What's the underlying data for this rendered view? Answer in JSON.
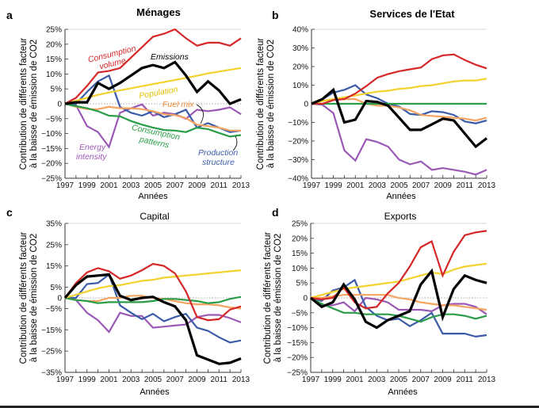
{
  "figure": {
    "y_axis_label_line1": "Contribution de différents facteur",
    "y_axis_label_line2": "à la baisse de émission de CO2",
    "x_axis_label": "Années"
  },
  "series_colors": {
    "consumption_volume": "#d62728",
    "emissions": "#000000",
    "population": "#f2d22e",
    "fuel_mix": "#f4a460",
    "consumption_patterns": "#2a9d48",
    "energy_intensity": "#9b59b6",
    "production_structure": "#3b5ba9"
  },
  "chart_data": [
    {
      "type": "line",
      "panel": "a",
      "title": "Ménages",
      "title_bold": true,
      "xlabel": "Années",
      "ylabel": "Contribution de différents facteur à la baisse de émission de CO2",
      "x": [
        1997,
        1998,
        1999,
        2000,
        2001,
        2002,
        2003,
        2004,
        2005,
        2006,
        2007,
        2008,
        2009,
        2010,
        2011,
        2012,
        2013
      ],
      "xticks": [
        "1997",
        "1999",
        "2001",
        "2003",
        "2005",
        "2007",
        "2009",
        "2011",
        "2013"
      ],
      "ylim": [
        -25,
        25
      ],
      "yticks": [
        25,
        20,
        15,
        10,
        5,
        0,
        -5,
        -10,
        -15,
        -20,
        -25
      ],
      "ytick_labels": [
        "25%",
        "20%",
        "15%",
        "10%",
        "5%",
        "0",
        "−5%",
        "−10%",
        "−15%",
        "−20%",
        "−25%"
      ],
      "zero_line": "dotted",
      "series": [
        {
          "key": "consumption_volume",
          "name": "Consumption volume",
          "values": [
            0,
            2,
            6,
            10.5,
            11,
            12,
            15.5,
            19,
            22.5,
            23.5,
            25,
            22,
            19.5,
            20.5,
            20.5,
            19.5,
            22
          ]
        },
        {
          "key": "population",
          "name": "Population",
          "values": [
            0,
            1,
            2,
            3,
            3.8,
            4.5,
            5.2,
            5.9,
            6.6,
            7.3,
            8,
            8.7,
            9.4,
            10.2,
            10.8,
            11.4,
            12
          ]
        },
        {
          "key": "fuel_mix",
          "name": "Fuel mix",
          "values": [
            0,
            -1,
            -1.8,
            -1.8,
            -1,
            -1.5,
            -1.5,
            -1.8,
            -2.5,
            -3.5,
            -3.8,
            -4.8,
            -7,
            -7.5,
            -8,
            -9,
            -9
          ]
        },
        {
          "key": "consumption_patterns",
          "name": "Consumption patterns",
          "values": [
            0,
            -0.8,
            -1.5,
            -2.5,
            -4,
            -4.2,
            -5.8,
            -7,
            -8,
            -8.8,
            -9,
            -9.5,
            -8,
            -8.5,
            -9.8,
            -11,
            -10.5
          ]
        },
        {
          "key": "energy_intensity",
          "name": "Energy intensity",
          "values": [
            0,
            -0.5,
            -7.5,
            -9.5,
            -14.5,
            -3,
            -1.5,
            -0.2,
            -4,
            -3,
            -3.5,
            -5,
            -2,
            -2.5,
            -2,
            -1.2,
            -3.5
          ]
        },
        {
          "key": "production_structure",
          "name": "Production structure",
          "values": [
            0,
            0,
            4,
            7.5,
            9.5,
            -1,
            -3,
            -4,
            -2.5,
            -4.5,
            -3.5,
            -2,
            -8,
            -6.5,
            -8,
            -9.5,
            -9
          ]
        },
        {
          "key": "emissions",
          "name": "Emissions",
          "values": [
            0,
            0.5,
            0.5,
            7,
            5,
            7,
            9.5,
            12,
            13,
            12,
            14,
            9.5,
            4,
            7.5,
            4.5,
            0,
            1.5
          ]
        }
      ],
      "annotations": [
        {
          "text": "Consumption volume",
          "color_key": "consumption_volume"
        },
        {
          "text": "Emissions",
          "color_key": "emissions"
        },
        {
          "text": "Population",
          "color_key": "population"
        },
        {
          "text": "Fuel mix",
          "color_key": "fuel_mix"
        },
        {
          "text": "Consumption patterns",
          "color_key": "consumption_patterns"
        },
        {
          "text": "Energy intensity",
          "color_key": "energy_intensity"
        },
        {
          "text": "Production structure",
          "color_key": "production_structure"
        }
      ]
    },
    {
      "type": "line",
      "panel": "b",
      "title": "Services de l'Etat",
      "title_bold": true,
      "xlabel": "Années",
      "x": [
        1997,
        1998,
        1999,
        2000,
        2001,
        2002,
        2003,
        2004,
        2005,
        2006,
        2007,
        2008,
        2009,
        2010,
        2011,
        2012,
        2013
      ],
      "xticks": [
        "1997",
        "1999",
        "2001",
        "2003",
        "2005",
        "2007",
        "2009",
        "2011",
        "2013"
      ],
      "ylim": [
        -40,
        40
      ],
      "yticks": [
        40,
        30,
        20,
        10,
        0,
        -10,
        -20,
        -30,
        -40
      ],
      "ytick_labels": [
        "40%",
        "30%",
        "20%",
        "10%",
        "0",
        "−10%",
        "−20%",
        "−30%",
        "−40%"
      ],
      "zero_line": "none",
      "series": [
        {
          "key": "consumption_volume",
          "name": "Consumption volume",
          "values": [
            0,
            0,
            2,
            2.5,
            5.5,
            9.5,
            14,
            16,
            17.5,
            18.5,
            19.5,
            24,
            26,
            26.5,
            23.5,
            21,
            19
          ]
        },
        {
          "key": "population",
          "name": "Population",
          "values": [
            0,
            1.5,
            2.5,
            3.5,
            4.5,
            5.5,
            6.5,
            7,
            8,
            8.5,
            9.5,
            10,
            11,
            12,
            12.5,
            12.5,
            13.5
          ]
        },
        {
          "key": "fuel_mix",
          "name": "Fuel mix",
          "values": [
            0,
            1.5,
            2.5,
            2.5,
            2.5,
            0,
            -1,
            -1,
            -2,
            -3.5,
            -6,
            -6.5,
            -7,
            -7.5,
            -8,
            -9,
            -7.5
          ]
        },
        {
          "key": "consumption_patterns",
          "name": "Consumption patterns",
          "values": [
            0,
            0,
            0,
            0,
            0,
            0,
            0,
            0,
            0,
            0,
            0,
            0,
            0,
            0,
            0,
            0,
            0
          ]
        },
        {
          "key": "energy_intensity",
          "name": "Energy intensity",
          "values": [
            0,
            -0.5,
            -5,
            -25,
            -30.5,
            -19,
            -20.5,
            -23,
            -30,
            -32.5,
            -31,
            -35.5,
            -34.5,
            -35.5,
            -36.5,
            -38,
            -35.5
          ]
        },
        {
          "key": "production_structure",
          "name": "Production structure",
          "values": [
            0,
            2.5,
            6,
            7.5,
            10,
            5,
            3,
            0,
            -1.5,
            -5.5,
            -6,
            -4,
            -4.5,
            -6,
            -9.5,
            -10.5,
            -9
          ]
        },
        {
          "key": "emissions",
          "name": "Emissions",
          "values": [
            0,
            2.5,
            7.5,
            -10,
            -8.5,
            1.5,
            1,
            -1,
            -7.5,
            -14,
            -14,
            -11,
            -8,
            -9,
            -16,
            -23,
            -18.5
          ]
        }
      ]
    },
    {
      "type": "line",
      "panel": "c",
      "title": "Capital",
      "title_bold": false,
      "xlabel": "Années",
      "ylabel": "Contribution de différents facteur à la baisse de émission de CO2",
      "x": [
        1997,
        1998,
        1999,
        2000,
        2001,
        2002,
        2003,
        2004,
        2005,
        2006,
        2007,
        2008,
        2009,
        2010,
        2011,
        2012,
        2013
      ],
      "xticks": [
        "1997",
        "1999",
        "2001",
        "2003",
        "2005",
        "2007",
        "2009",
        "2011",
        "2013"
      ],
      "ylim": [
        -35,
        35
      ],
      "yticks": [
        35,
        25,
        15,
        5,
        0,
        -5,
        -15,
        -25,
        -35
      ],
      "ytick_labels": [
        "35%",
        "25%",
        "15%",
        "5%",
        "0",
        "−5%",
        "−15%",
        "−25%",
        "−35%"
      ],
      "zero_line": "dotted",
      "series": [
        {
          "key": "consumption_volume",
          "name": "Consumption volume",
          "values": [
            0,
            7,
            12,
            14,
            12.5,
            9,
            10.5,
            13,
            16,
            15,
            11.5,
            3,
            -9,
            -10.5,
            -10,
            -5.5,
            -4
          ]
        },
        {
          "key": "population",
          "name": "Population",
          "values": [
            0,
            1.5,
            3,
            4.5,
            5.5,
            6,
            7,
            8,
            8.5,
            9.5,
            10,
            10.5,
            11,
            11.5,
            12,
            12.5,
            13
          ]
        },
        {
          "key": "fuel_mix",
          "name": "Fuel mix",
          "values": [
            0,
            -1,
            -1.5,
            -1.5,
            0,
            0,
            1,
            1,
            0,
            -0.5,
            -1.5,
            -2.5,
            -3,
            -3,
            -3.5,
            -4.5,
            -5
          ]
        },
        {
          "key": "consumption_patterns",
          "name": "Consumption patterns",
          "values": [
            0,
            -1,
            -1.5,
            -2.5,
            -2,
            -2,
            -2,
            -2,
            -1.5,
            -0.5,
            -0.5,
            -1,
            -1.5,
            -2.5,
            -2,
            -0.5,
            0.5
          ]
        },
        {
          "key": "energy_intensity",
          "name": "Energy intensity",
          "values": [
            0,
            -1,
            -7,
            -10.5,
            -16,
            -7,
            -8.5,
            -8.5,
            -14,
            -13.5,
            -13,
            -12.5,
            -9,
            -8,
            -8,
            -9.5,
            -11.5
          ]
        },
        {
          "key": "production_structure",
          "name": "Production structure",
          "values": [
            0,
            0,
            6.5,
            7,
            11,
            -3.5,
            -7,
            -10,
            -7.5,
            -11,
            -9,
            -7.5,
            -14,
            -15.5,
            -18.5,
            -21,
            -20
          ]
        },
        {
          "key": "emissions",
          "name": "Emissions",
          "values": [
            0,
            6,
            10,
            10.5,
            11,
            1,
            -1,
            0,
            0.5,
            -2,
            -4,
            -10.5,
            -27,
            -29,
            -31,
            -30.5,
            -28.5
          ]
        }
      ]
    },
    {
      "type": "line",
      "panel": "d",
      "title": "Exports",
      "title_bold": false,
      "xlabel": "Années",
      "x": [
        1997,
        1998,
        1999,
        2000,
        2001,
        2002,
        2003,
        2004,
        2005,
        2006,
        2007,
        2008,
        2009,
        2010,
        2011,
        2012,
        2013
      ],
      "xticks": [
        "1997",
        "1999",
        "2001",
        "2003",
        "2005",
        "2007",
        "2009",
        "2011",
        "2013"
      ],
      "ylim": [
        -25,
        25
      ],
      "yticks": [
        25,
        20,
        15,
        10,
        5,
        0,
        -5,
        -10,
        -15,
        -20,
        -25
      ],
      "ytick_labels": [
        "25%",
        "20%",
        "15%",
        "10%",
        "5%",
        "0",
        "−5%",
        "−10%",
        "−15%",
        "−20%",
        "−25%"
      ],
      "zero_line": "dotted",
      "series": [
        {
          "key": "consumption_volume",
          "name": "Consumption volume",
          "values": [
            0,
            -0.5,
            0,
            3.5,
            -1.5,
            -3.5,
            -3,
            1.5,
            5,
            10.5,
            17,
            19,
            7.5,
            15.5,
            21,
            22,
            22.5
          ]
        },
        {
          "key": "population",
          "name": "Population",
          "values": [
            0,
            1,
            2,
            3,
            3.5,
            4,
            4.5,
            5,
            5.5,
            6.5,
            7.5,
            8.5,
            8,
            9.5,
            10.5,
            11,
            11.5
          ]
        },
        {
          "key": "fuel_mix",
          "name": "Fuel mix",
          "values": [
            0,
            0,
            0.5,
            1,
            1,
            1,
            1,
            1,
            0,
            -0.5,
            -1.5,
            -2,
            -2.5,
            -2.5,
            -3,
            -3.5,
            -4
          ]
        },
        {
          "key": "consumption_patterns",
          "name": "Consumption patterns",
          "values": [
            0,
            -2,
            -3.5,
            -5,
            -5,
            -5.5,
            -5.5,
            -5.5,
            -6,
            -7,
            -8,
            -6.5,
            -5.5,
            -5.5,
            -6,
            -7,
            -6
          ]
        },
        {
          "key": "energy_intensity",
          "name": "Energy intensity",
          "values": [
            0,
            -2.5,
            -2.5,
            -1.5,
            -4.5,
            0,
            -0.5,
            -1.5,
            -4,
            -4,
            -4,
            -4.5,
            -2.5,
            -2,
            -2,
            -3,
            -5.5
          ]
        },
        {
          "key": "production_structure",
          "name": "Production structure",
          "values": [
            0,
            -1,
            2.5,
            3.5,
            6,
            -3,
            -6,
            -7.5,
            -7,
            -9.5,
            -7.5,
            -5,
            -12,
            -12,
            -12,
            -13,
            -12.5
          ]
        },
        {
          "key": "emissions",
          "name": "Emissions",
          "values": [
            0,
            -3,
            -1.5,
            4.5,
            -0.5,
            -8,
            -10,
            -7.5,
            -6,
            -4.5,
            4.5,
            9,
            -6.5,
            3,
            7.5,
            6,
            5
          ]
        }
      ]
    }
  ]
}
